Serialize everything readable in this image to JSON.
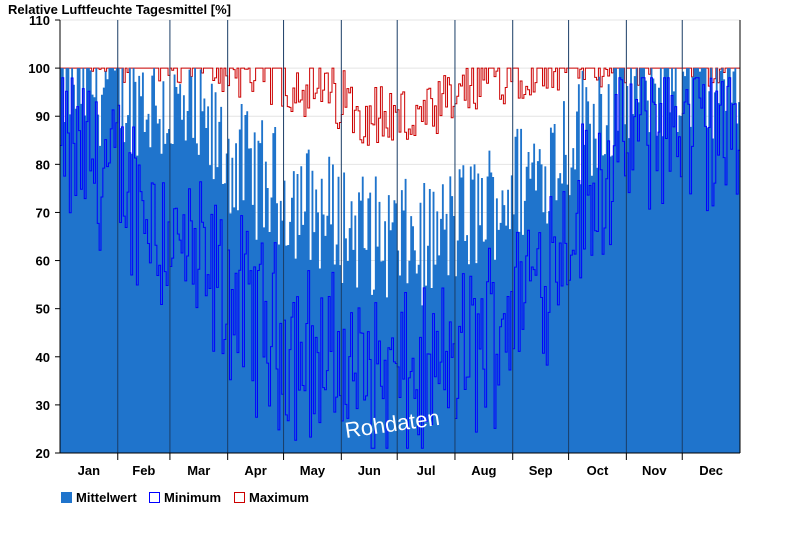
{
  "chart_data": {
    "type": "area",
    "title": "Relative Luftfeuchte Tagesmittel [%]",
    "xlabel": "",
    "ylabel": "Relative Luftfeuchte Tagesmittel [%]",
    "ylim": [
      20,
      110
    ],
    "yticks": [
      20,
      30,
      40,
      50,
      60,
      70,
      80,
      90,
      100,
      110
    ],
    "categories": [
      "Jan",
      "Feb",
      "Mar",
      "Apr",
      "May",
      "Jun",
      "Jul",
      "Aug",
      "Sep",
      "Oct",
      "Nov",
      "Dec"
    ],
    "month_days": [
      31,
      28,
      31,
      30,
      31,
      30,
      31,
      31,
      30,
      31,
      30,
      31
    ],
    "watermark": "Rohdaten",
    "legend": [
      "Mittelwert",
      "Minimum",
      "Maximum"
    ],
    "colors": {
      "mittel": "#1f74cc",
      "minimum": "#0000ff",
      "maximum": "#cc0000"
    },
    "series": [
      {
        "name": "Mittelwert",
        "description": "daily mean relative humidity, approximate monthly envelope",
        "monthly_values": [
          96,
          93,
          86,
          76,
          70,
          64,
          62,
          70,
          78,
          90,
          96,
          97
        ]
      },
      {
        "name": "Minimum",
        "description": "daily minimum relative humidity, approximate monthly envelope",
        "monthly_values": [
          82,
          72,
          58,
          48,
          40,
          36,
          34,
          44,
          58,
          76,
          90,
          86
        ]
      },
      {
        "name": "Maximum",
        "description": "daily maximum relative humidity, approximate monthly envelope",
        "monthly_values": [
          100,
          100,
          99,
          97,
          93,
          88,
          86,
          95,
          99,
          100,
          100,
          100
        ]
      }
    ]
  }
}
